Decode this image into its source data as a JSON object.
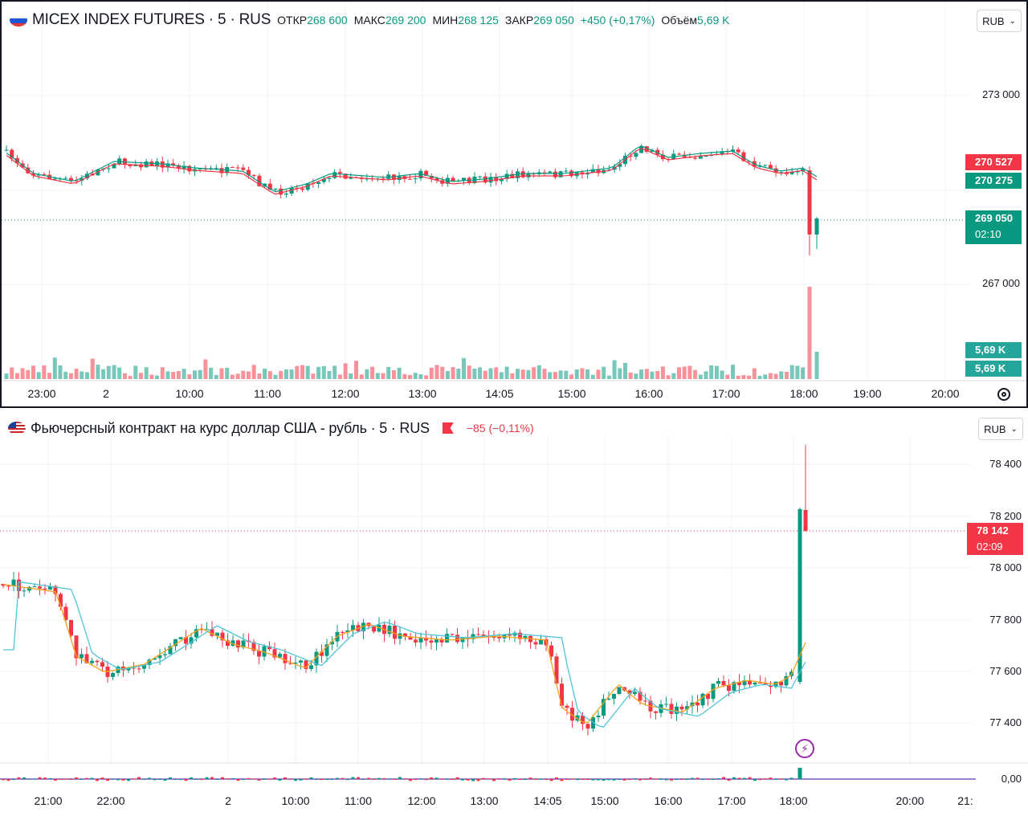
{
  "top_chart": {
    "symbol": "MICEX INDEX FUTURES · 5 · RUS",
    "open_label": "ОТКР",
    "open": "268 600",
    "high_label": "МАКС",
    "high": "269 200",
    "low_label": "МИН",
    "low": "268 125",
    "close_label": "ЗАКР",
    "close": "269 050",
    "change": "+450 (+0,17%)",
    "volume_label": "Объём",
    "volume": "5,69 K",
    "currency": "RUB",
    "price_axis": [
      "273 000",
      "267 000"
    ],
    "tags": {
      "ma_red": "270 527",
      "ma_green": "270 275",
      "last_price": "269 050",
      "countdown": "02:10",
      "vol1": "5,69 K",
      "vol2": "5,69 K"
    },
    "time_axis": [
      "23:00",
      "2",
      "10:00",
      "11:00",
      "12:00",
      "13:00",
      "14:05",
      "15:00",
      "16:00",
      "17:00",
      "18:00",
      "19:00",
      "20:00"
    ],
    "colors": {
      "up": "#089981",
      "down": "#f23645"
    }
  },
  "bottom_chart": {
    "symbol": "Фьючерсный контракт на курс доллар США - рубль · 5 · RUS",
    "change": "−85 (−0,11%)",
    "currency": "RUB",
    "price_axis": [
      "78 400",
      "78 200",
      "78 000",
      "77 800",
      "77 600",
      "77 400"
    ],
    "last_price": "78 142",
    "countdown": "02:09",
    "osc_value": "0,00",
    "time_axis": [
      "21:00",
      "22:00",
      "2",
      "10:00",
      "11:00",
      "12:00",
      "13:00",
      "14:05",
      "15:00",
      "16:00",
      "17:00",
      "18:00",
      "20:00",
      "21:"
    ],
    "colors": {
      "up": "#089981",
      "down": "#f23645",
      "ma_fast": "#f7a21b",
      "ma_slow": "#4fc3d9"
    }
  }
}
